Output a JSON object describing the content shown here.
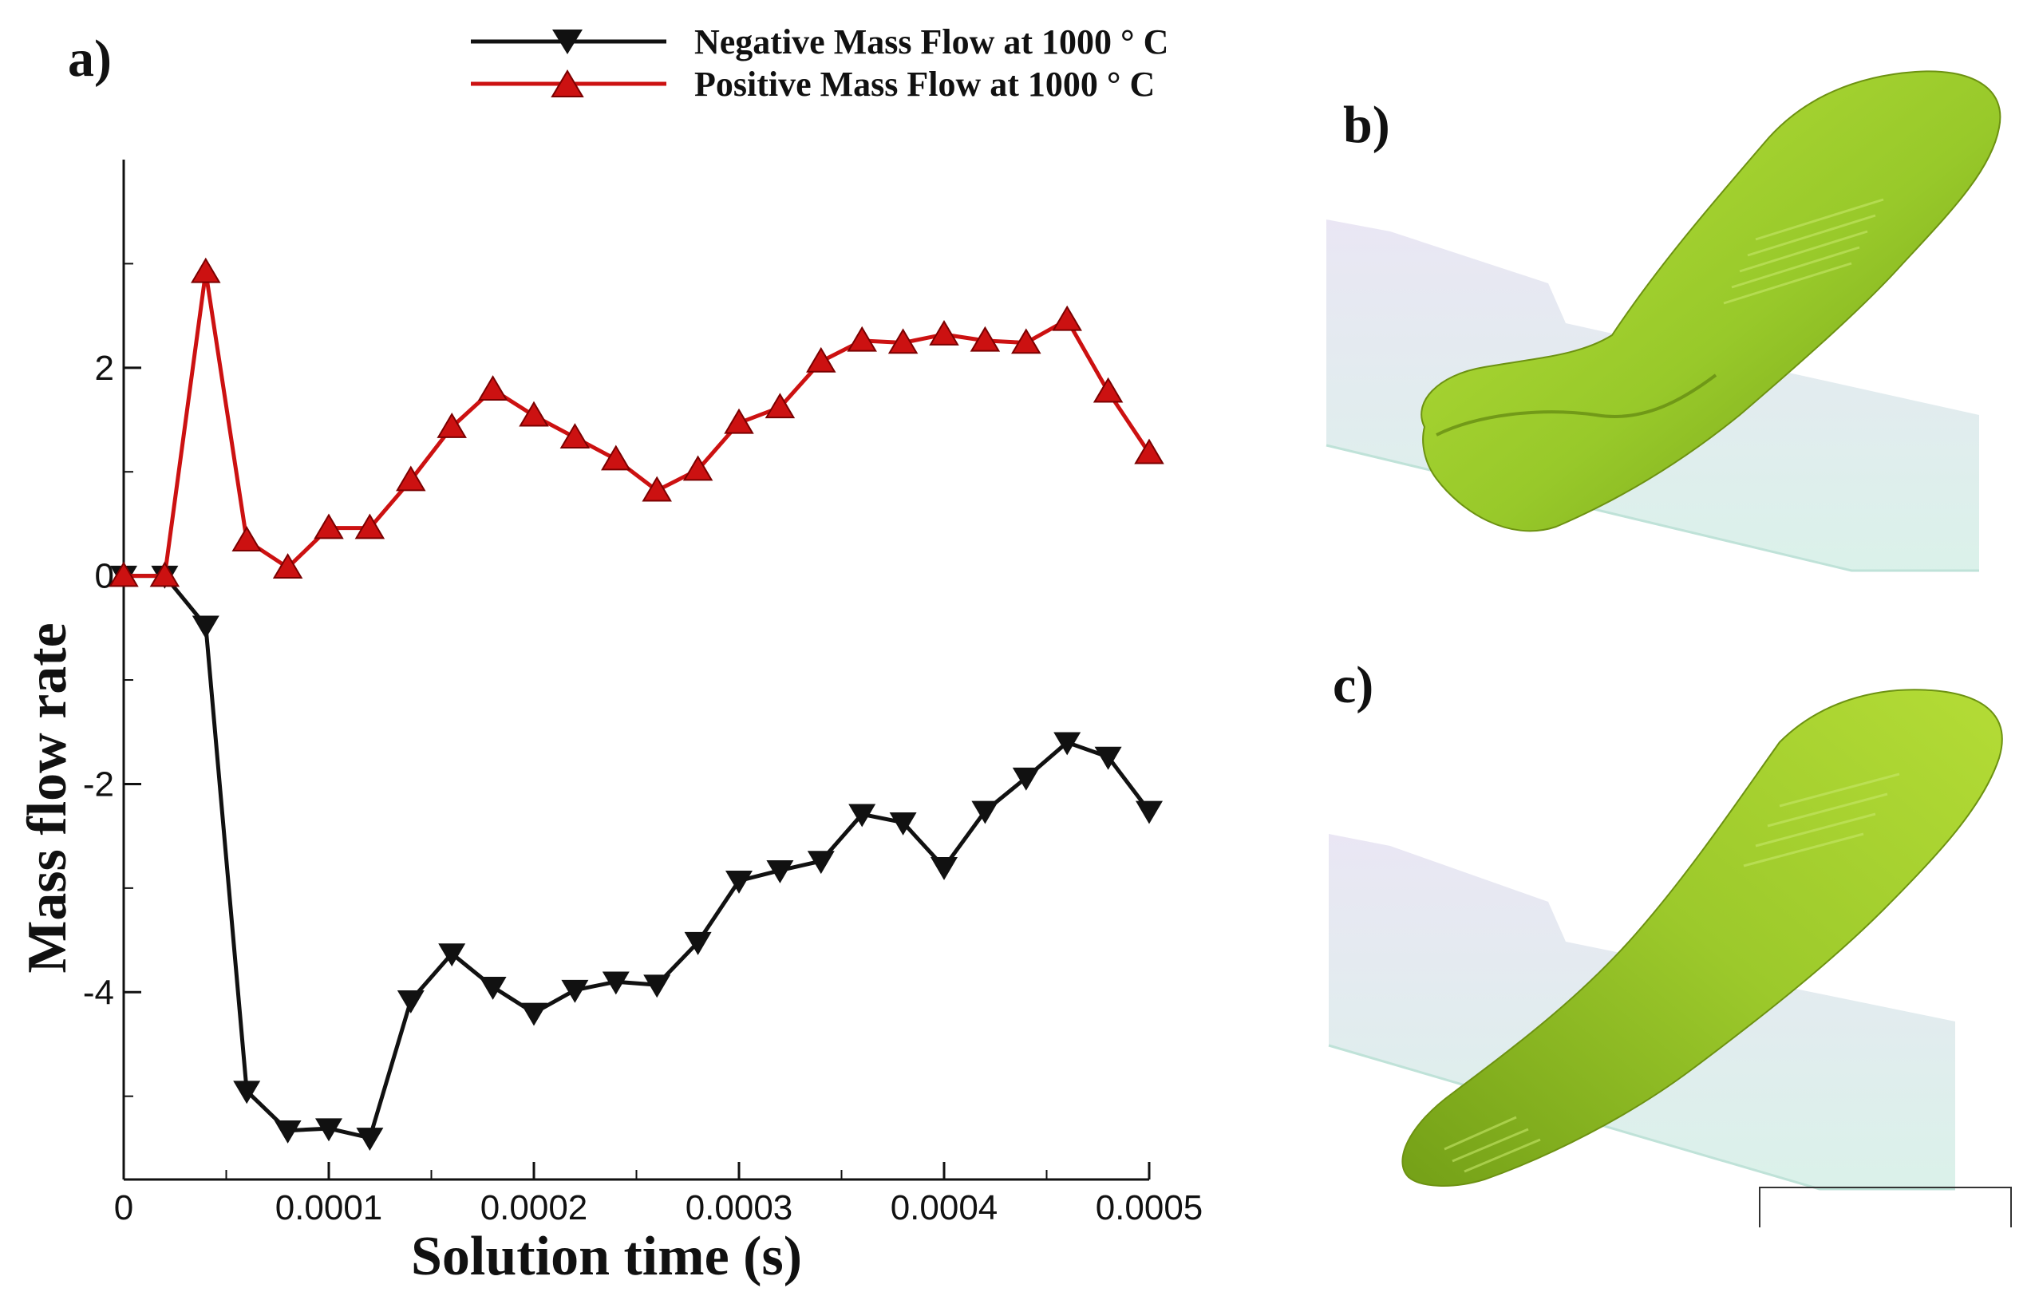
{
  "panels": {
    "a": "a)",
    "b": "b)",
    "c": "c)"
  },
  "colors": {
    "negative": "#111111",
    "positive": "#cc1111",
    "melt_pool": "#9ccc2a",
    "substrate": "#cfeee4"
  },
  "chart_data": {
    "type": "line",
    "xlabel": "Solution time (s)",
    "ylabel": "Mass flow rate",
    "xlim": [
      0,
      0.0005
    ],
    "ylim": [
      -5.8,
      4
    ],
    "xticks": [
      0,
      0.0001,
      0.0002,
      0.0003,
      0.0004,
      0.0005
    ],
    "xtick_labels": [
      "0",
      "0.0001",
      "0.0002",
      "0.0003",
      "0.0004",
      "0.0005"
    ],
    "yticks": [
      -4,
      -2,
      0,
      2
    ],
    "ytick_labels": [
      "-4",
      "-2",
      "0",
      "2"
    ],
    "legend_position": "top",
    "x": [
      0,
      2e-05,
      4e-05,
      6e-05,
      8e-05,
      0.0001,
      0.00012,
      0.00014,
      0.00016,
      0.00018,
      0.0002,
      0.00022,
      0.00024,
      0.00026,
      0.00028,
      0.0003,
      0.00032,
      0.00034,
      0.00036,
      0.00038,
      0.0004,
      0.00042,
      0.00044,
      0.00046,
      0.00048,
      0.0005
    ],
    "series": [
      {
        "name": "Negative Mass Flow at 1000 ° C",
        "marker": "triangle-down",
        "values": [
          0,
          0,
          -0.48,
          -4.95,
          -5.33,
          -5.31,
          -5.4,
          -4.08,
          -3.63,
          -3.95,
          -4.2,
          -3.98,
          -3.9,
          -3.93,
          -3.52,
          -2.93,
          -2.83,
          -2.74,
          -2.29,
          -2.37,
          -2.8,
          -2.26,
          -1.94,
          -1.6,
          -1.74,
          -2.26
        ]
      },
      {
        "name": "Positive Mass Flow at 1000 ° C",
        "marker": "triangle-up",
        "values": [
          0,
          0,
          2.92,
          0.34,
          0.08,
          0.46,
          0.46,
          0.92,
          1.43,
          1.79,
          1.54,
          1.33,
          1.12,
          0.82,
          1.02,
          1.47,
          1.62,
          2.06,
          2.26,
          2.24,
          2.32,
          2.26,
          2.24,
          2.46,
          1.77,
          1.18
        ]
      }
    ]
  }
}
